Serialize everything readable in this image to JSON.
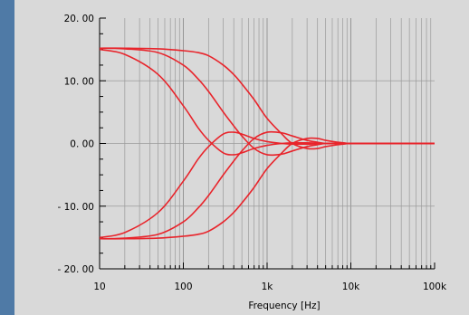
{
  "chart_data": {
    "type": "line",
    "title": "",
    "xlabel": "Frequency  [Hz]",
    "ylabel": "",
    "x_scale": "log",
    "xlim": [
      10,
      100000
    ],
    "ylim": [
      -20,
      20
    ],
    "grid": true,
    "legend": "none",
    "line_color": "#e8242b",
    "x_ticks": [
      {
        "value": 10,
        "label": "10"
      },
      {
        "value": 100,
        "label": "100"
      },
      {
        "value": 1000,
        "label": "1k"
      },
      {
        "value": 10000,
        "label": "10k"
      },
      {
        "value": 100000,
        "label": "100k"
      }
    ],
    "y_ticks": [
      {
        "value": 20,
        "label": "20. 00"
      },
      {
        "value": 10,
        "label": "10. 00"
      },
      {
        "value": 0,
        "label": "0. 00"
      },
      {
        "value": -10,
        "label": "- 10. 00"
      },
      {
        "value": -20,
        "label": "- 20. 00"
      }
    ],
    "x": [
      10,
      20,
      50,
      100,
      150,
      200,
      300,
      400,
      500,
      700,
      1000,
      1500,
      2000,
      3000,
      4000,
      5000,
      7000,
      10000,
      15000,
      20000,
      30000,
      50000,
      100000
    ],
    "series": [
      {
        "values": [
          15,
          14.2,
          11,
          6,
          2.5,
          0.5,
          -1.5,
          -1.8,
          -1.5,
          -0.8,
          -0.3,
          0,
          0.1,
          0.1,
          0.05,
          0,
          0,
          0,
          0,
          0,
          0,
          0,
          0
        ]
      },
      {
        "values": [
          15.2,
          15.1,
          14.5,
          12.5,
          10.3,
          8.3,
          5,
          2.8,
          1.2,
          -0.8,
          -1.8,
          -1.7,
          -1.2,
          -0.5,
          -0.2,
          0,
          0,
          0,
          0,
          0,
          0,
          0,
          0
        ]
      },
      {
        "values": [
          15.2,
          15.2,
          15.1,
          14.8,
          14.5,
          14,
          12.5,
          11,
          9.5,
          7,
          4,
          1.5,
          0,
          -0.8,
          -0.8,
          -0.5,
          -0.2,
          0,
          0,
          0,
          0,
          0,
          0
        ]
      },
      {
        "values": [
          -15,
          -14.2,
          -11,
          -6,
          -2.5,
          -0.5,
          1.5,
          1.8,
          1.5,
          0.8,
          0.3,
          0,
          -0.1,
          -0.1,
          -0.05,
          0,
          0,
          0,
          0,
          0,
          0,
          0,
          0
        ]
      },
      {
        "values": [
          -15.2,
          -15.1,
          -14.5,
          -12.5,
          -10.3,
          -8.3,
          -5,
          -2.8,
          -1.2,
          0.8,
          1.8,
          1.7,
          1.2,
          0.5,
          0.2,
          0,
          0,
          0,
          0,
          0,
          0,
          0,
          0
        ]
      },
      {
        "values": [
          -15.2,
          -15.2,
          -15.1,
          -14.8,
          -14.5,
          -14,
          -12.5,
          -11,
          -9.5,
          -7,
          -4,
          -1.5,
          0,
          0.8,
          0.8,
          0.5,
          0.2,
          0,
          0,
          0,
          0,
          0,
          0
        ]
      }
    ]
  }
}
